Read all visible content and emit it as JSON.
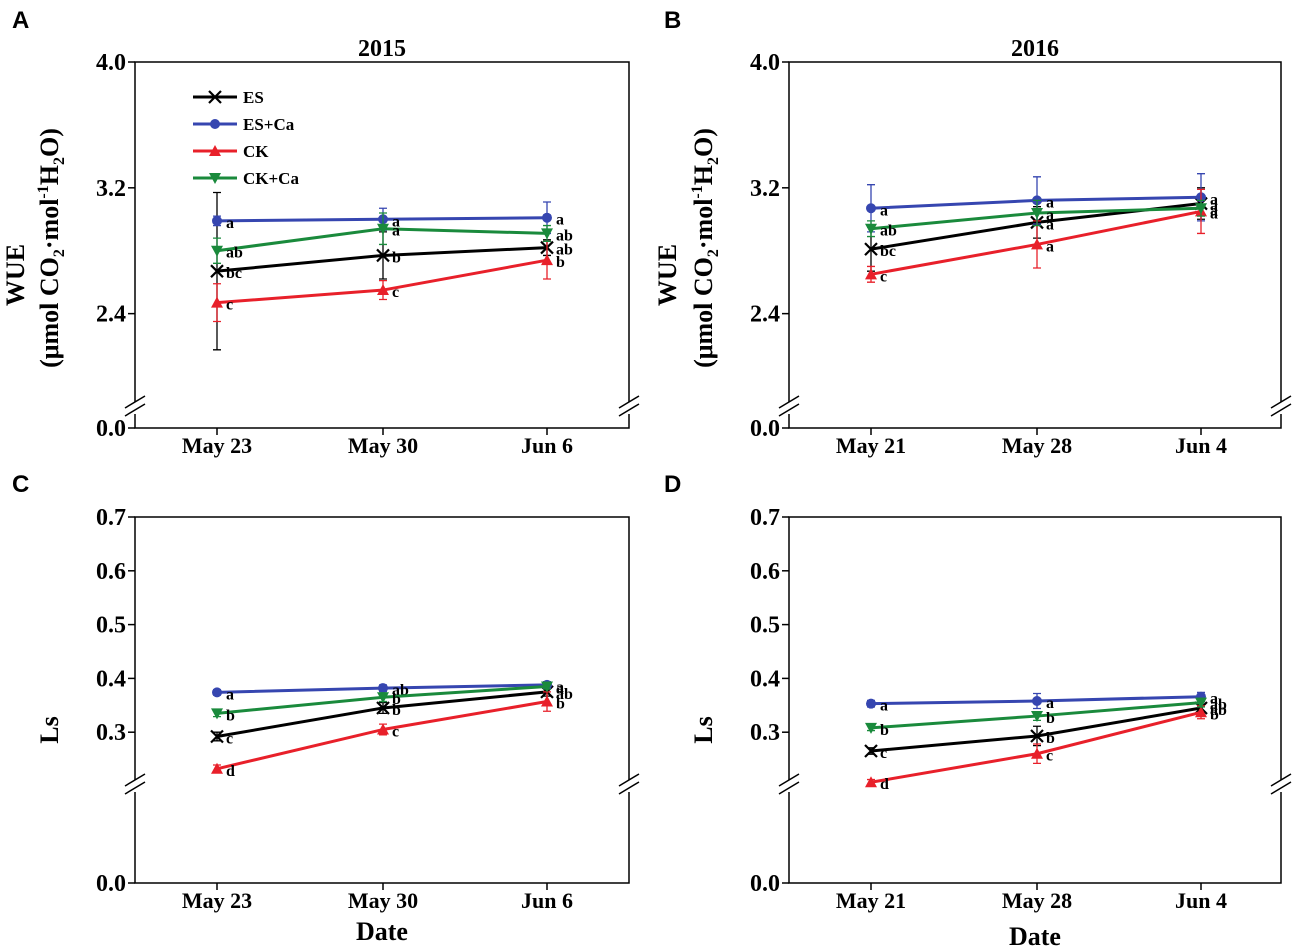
{
  "colors": {
    "ES": "#000000",
    "ES+Ca": "#3646b0",
    "CK": "#e8202a",
    "CK+Ca": "#1a8a3c"
  },
  "legend": [
    {
      "name": "ES",
      "marker": "x"
    },
    {
      "name": "ES+Ca",
      "marker": "circle"
    },
    {
      "name": "CK",
      "marker": "triangle-up"
    },
    {
      "name": "CK+Ca",
      "marker": "triangle-down"
    }
  ],
  "chart_data": [
    {
      "panel": "A",
      "type": "line",
      "title": "2015",
      "xlabel": "",
      "ylabel_line1": "WUE",
      "ylabel_line2": {
        "prefix": "(μmol CO",
        "sub1": "2",
        "mid": "·mol",
        "sup": "-1",
        "h": "H",
        "sub2": "2",
        "suffix": "O)"
      },
      "categories": [
        "May 23",
        "May 30",
        "Jun 6"
      ],
      "ylim": [
        0.0,
        4.0
      ],
      "axis_break": [
        0.0,
        1.8
      ],
      "yticks": [
        0.0,
        2.4,
        3.2,
        4.0
      ],
      "ytick_labels": [
        "0.0",
        "2.4",
        "3.2",
        "4.0"
      ],
      "show_legend": true,
      "series": [
        {
          "name": "ES",
          "values": [
            2.67,
            2.77,
            2.82
          ],
          "errors": [
            0.5,
            0.15,
            0.05
          ],
          "letters": [
            "bc",
            "b",
            "ab"
          ]
        },
        {
          "name": "ES+Ca",
          "values": [
            2.99,
            3.0,
            3.01
          ],
          "errors": [
            0.03,
            0.07,
            0.1
          ],
          "letters": [
            "a",
            "a",
            "a"
          ]
        },
        {
          "name": "CK",
          "values": [
            2.47,
            2.55,
            2.74
          ],
          "errors": [
            0.12,
            0.06,
            0.12
          ],
          "letters": [
            "c",
            "c",
            "b"
          ]
        },
        {
          "name": "CK+Ca",
          "values": [
            2.8,
            2.94,
            2.91
          ],
          "errors": [
            0.08,
            0.1,
            0.05
          ],
          "letters": [
            "ab",
            "a",
            "ab"
          ]
        }
      ]
    },
    {
      "panel": "B",
      "type": "line",
      "title": "2016",
      "xlabel": "",
      "ylabel_line1": "WUE",
      "ylabel_line2": {
        "prefix": "(μmol CO",
        "sub1": "2",
        "mid": "·mol",
        "sup": "-1",
        "h": "H",
        "sub2": "2",
        "suffix": "O)"
      },
      "categories": [
        "May 21",
        "May 28",
        "Jun 4"
      ],
      "ylim": [
        0.0,
        4.0
      ],
      "axis_break": [
        0.0,
        1.8
      ],
      "yticks": [
        0.0,
        2.4,
        3.2,
        4.0
      ],
      "ytick_labels": [
        "0.0",
        "2.4",
        "3.2",
        "4.0"
      ],
      "show_legend": false,
      "series": [
        {
          "name": "ES",
          "values": [
            2.81,
            2.98,
            3.1
          ],
          "errors": [
            0.14,
            0.1,
            0.1
          ],
          "letters": [
            "bc",
            "a",
            "a"
          ]
        },
        {
          "name": "ES+Ca",
          "values": [
            3.07,
            3.12,
            3.14
          ],
          "errors": [
            0.15,
            0.15,
            0.15
          ],
          "letters": [
            "a",
            "a",
            "a"
          ]
        },
        {
          "name": "CK",
          "values": [
            2.65,
            2.84,
            3.05
          ],
          "errors": [
            0.05,
            0.15,
            0.14
          ],
          "letters": [
            "c",
            "a",
            "a"
          ]
        },
        {
          "name": "CK+Ca",
          "values": [
            2.94,
            3.04,
            3.07
          ],
          "errors": [
            0.05,
            0.08,
            0.05
          ],
          "letters": [
            "ab",
            "a",
            "a"
          ]
        }
      ]
    },
    {
      "panel": "C",
      "type": "line",
      "title": "",
      "xlabel": "Date",
      "ylabel_line1": "Ls",
      "ylabel_line2": null,
      "categories": [
        "May 23",
        "May 30",
        "Jun 6"
      ],
      "ylim": [
        0.0,
        0.7
      ],
      "axis_break": [
        0.0,
        0.2
      ],
      "yticks": [
        0.0,
        0.3,
        0.4,
        0.5,
        0.6,
        0.7
      ],
      "ytick_labels": [
        "0.0",
        "0.3",
        "0.4",
        "0.5",
        "0.6",
        "0.7"
      ],
      "show_legend": false,
      "series": [
        {
          "name": "ES",
          "values": [
            0.292,
            0.345,
            0.375
          ],
          "errors": [
            0.008,
            0.01,
            0.008
          ],
          "letters": [
            "c",
            "b",
            "ab"
          ]
        },
        {
          "name": "ES+Ca",
          "values": [
            0.374,
            0.382,
            0.388
          ],
          "errors": [
            0.005,
            0.006,
            0.006
          ],
          "letters": [
            "a",
            "ab",
            "a"
          ]
        },
        {
          "name": "CK",
          "values": [
            0.232,
            0.305,
            0.357
          ],
          "errors": [
            0.007,
            0.01,
            0.018
          ],
          "letters": [
            "d",
            "c",
            "b"
          ]
        },
        {
          "name": "CK+Ca",
          "values": [
            0.335,
            0.365,
            0.385
          ],
          "errors": [
            0.006,
            0.008,
            0.005
          ],
          "letters": [
            "b",
            "b",
            "a"
          ]
        }
      ]
    },
    {
      "panel": "D",
      "type": "line",
      "title": "",
      "xlabel": "Date",
      "ylabel_line1": "Ls",
      "ylabel_line2": null,
      "categories": [
        "May 21",
        "May 28",
        "Jun 4"
      ],
      "ylim": [
        0.0,
        0.7
      ],
      "axis_break": [
        0.0,
        0.2
      ],
      "yticks": [
        0.0,
        0.3,
        0.4,
        0.5,
        0.6,
        0.7
      ],
      "ytick_labels": [
        "0.0",
        "0.3",
        "0.4",
        "0.5",
        "0.6",
        "0.7"
      ],
      "show_legend": false,
      "series": [
        {
          "name": "ES",
          "values": [
            0.265,
            0.293,
            0.345
          ],
          "errors": [
            0.006,
            0.018,
            0.012
          ],
          "letters": [
            "c",
            "b",
            "ab"
          ]
        },
        {
          "name": "ES+Ca",
          "values": [
            0.353,
            0.358,
            0.366
          ],
          "errors": [
            0.006,
            0.014,
            0.008
          ],
          "letters": [
            "a",
            "a",
            "a"
          ]
        },
        {
          "name": "CK",
          "values": [
            0.207,
            0.26,
            0.337
          ],
          "errors": [
            0.005,
            0.018,
            0.012
          ],
          "letters": [
            "d",
            "c",
            "b"
          ]
        },
        {
          "name": "CK+Ca",
          "values": [
            0.308,
            0.33,
            0.355
          ],
          "errors": [
            0.005,
            0.008,
            0.008
          ],
          "letters": [
            "b",
            "b",
            "ab"
          ]
        }
      ]
    }
  ]
}
